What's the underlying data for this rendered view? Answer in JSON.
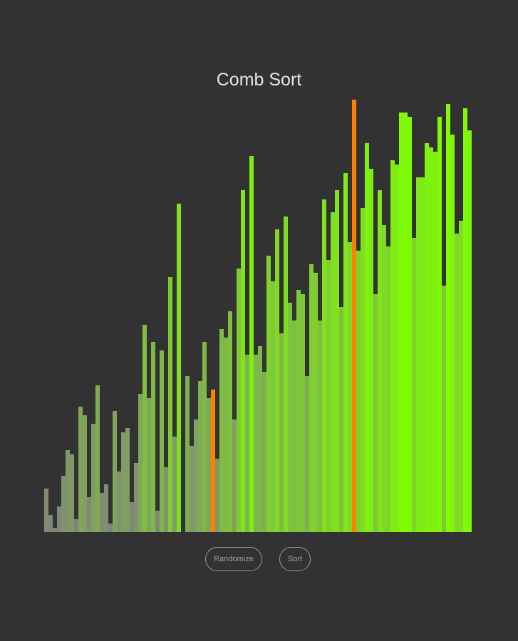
{
  "title": "Comb Sort",
  "controls": {
    "randomize_label": "Randomize",
    "sort_label": "Sort"
  },
  "colors": {
    "background": "#323232",
    "low": "#808080",
    "high": "#7fff00",
    "highlight": "#ff8000"
  },
  "chart_data": {
    "type": "bar",
    "max_value": 600,
    "highlighted_indices": [
      39,
      72
    ],
    "values": [
      60,
      24,
      6,
      36,
      78,
      114,
      108,
      18,
      174,
      162,
      48,
      150,
      204,
      54,
      66,
      12,
      168,
      84,
      138,
      144,
      42,
      96,
      192,
      288,
      186,
      264,
      30,
      252,
      90,
      354,
      132,
      456,
      0,
      216,
      120,
      156,
      210,
      264,
      186,
      198,
      102,
      282,
      270,
      306,
      156,
      366,
      474,
      246,
      522,
      246,
      258,
      222,
      384,
      348,
      420,
      276,
      438,
      318,
      294,
      336,
      330,
      216,
      372,
      360,
      294,
      462,
      378,
      444,
      474,
      312,
      498,
      402,
      600,
      390,
      450,
      540,
      504,
      330,
      474,
      426,
      396,
      516,
      510,
      582,
      582,
      576,
      408,
      492,
      492,
      540,
      534,
      528,
      576,
      342,
      594,
      552,
      414,
      432,
      588,
      558
    ]
  }
}
